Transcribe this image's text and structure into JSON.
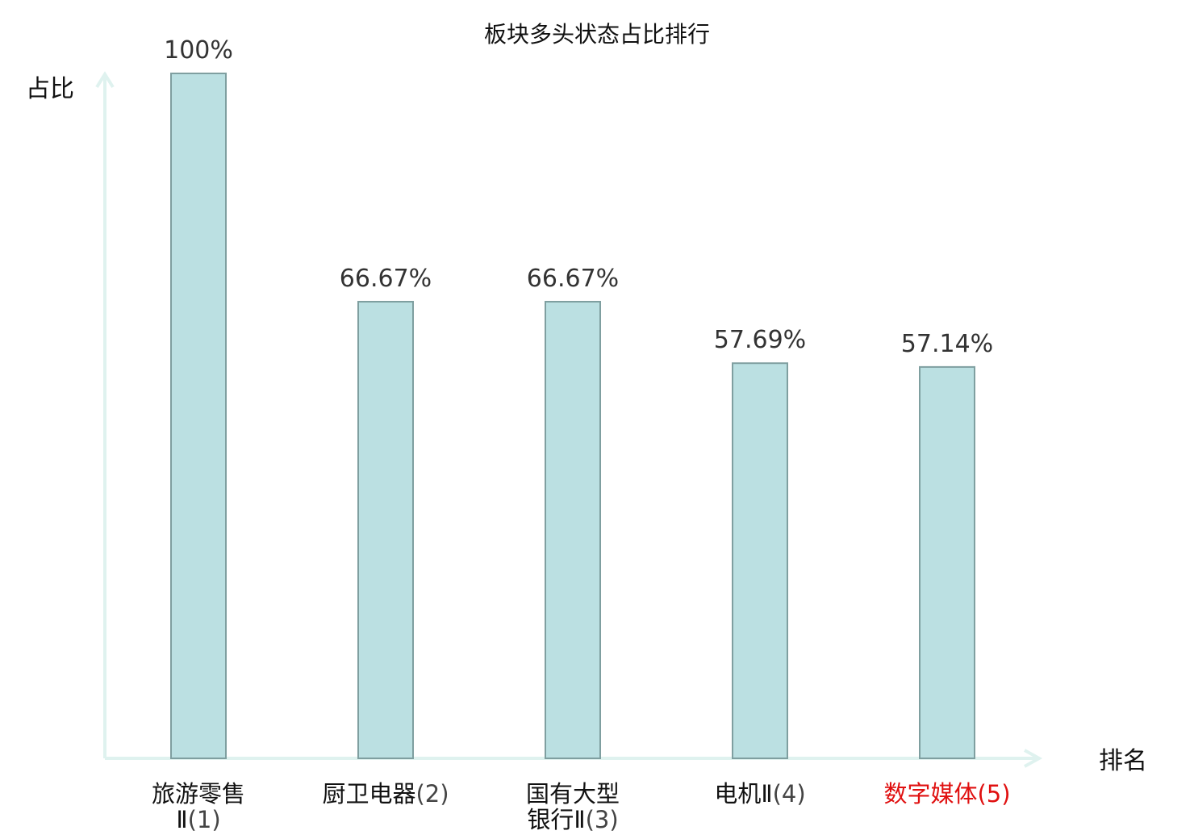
{
  "chart_data": {
    "type": "bar",
    "title": "板块多头状态占比排行",
    "ylabel": "占比",
    "xlabel": "排名",
    "ylim": [
      0,
      100
    ],
    "unit": "%",
    "grid": false,
    "categories": [
      {
        "name_lines": [
          "旅游零售",
          "Ⅱ"
        ],
        "rank": "(1)",
        "highlight": false
      },
      {
        "name_lines": [
          "厨卫电器"
        ],
        "rank": "(2)",
        "highlight": false
      },
      {
        "name_lines": [
          "国有大型",
          "银行Ⅱ"
        ],
        "rank": "(3)",
        "highlight": false
      },
      {
        "name_lines": [
          "电机Ⅱ"
        ],
        "rank": "(4)",
        "highlight": false
      },
      {
        "name_lines": [
          "数字媒体"
        ],
        "rank": "(5)",
        "highlight": true
      }
    ],
    "values": [
      100,
      66.67,
      66.67,
      57.69,
      57.14
    ],
    "value_labels": [
      "100%",
      "66.67%",
      "66.67%",
      "57.69%",
      "57.14%"
    ],
    "colors": {
      "bar_fill": "#bbe0e2",
      "bar_stroke": "#7f9fa0",
      "axis": "#dff2ef",
      "label_normal": "#111111",
      "rank_normal": "#444444",
      "label_highlight": "#e01010"
    }
  }
}
